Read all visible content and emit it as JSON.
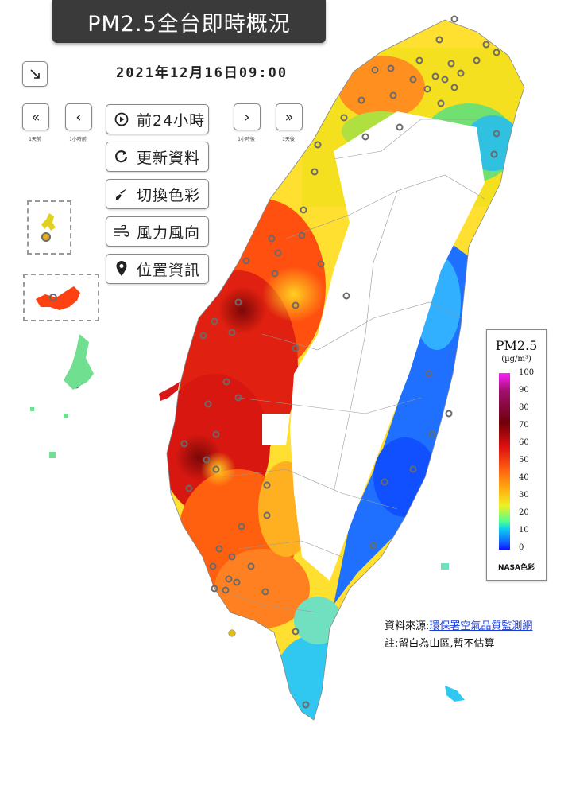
{
  "header": {
    "title": "PM2.5全台即時概況",
    "datetime": "2021年12月16日09:00"
  },
  "nav": {
    "collapse_icon": "collapse-arrow-icon",
    "day_back_label": "1天前",
    "hour_back_label": "1小時前",
    "hour_fwd_label": "1小時後",
    "day_fwd_label": "1天後"
  },
  "menu": [
    {
      "label": "前24小時",
      "icon": "play-circle-icon"
    },
    {
      "label": "更新資料",
      "icon": "refresh-icon"
    },
    {
      "label": "切換色彩",
      "icon": "paint-brush-icon"
    },
    {
      "label": "風力風向",
      "icon": "wind-icon"
    },
    {
      "label": "位置資訊",
      "icon": "location-pin-icon"
    }
  ],
  "legend": {
    "title": "PM2.5",
    "unit": "(µg/m³)",
    "ticks": [
      "100",
      "90",
      "80",
      "70",
      "60",
      "50",
      "40",
      "30",
      "20",
      "10",
      "0"
    ],
    "footer": "NASA色彩"
  },
  "source": {
    "prefix": "資料來源:",
    "link": "環保署空氣品質監測網"
  },
  "note": "註:留白為山區,暫不估算",
  "colors": {
    "high": "#c81010",
    "mid": "#ff8a10",
    "low": "#1060ff",
    "title_bg": "#3a3a3a"
  }
}
